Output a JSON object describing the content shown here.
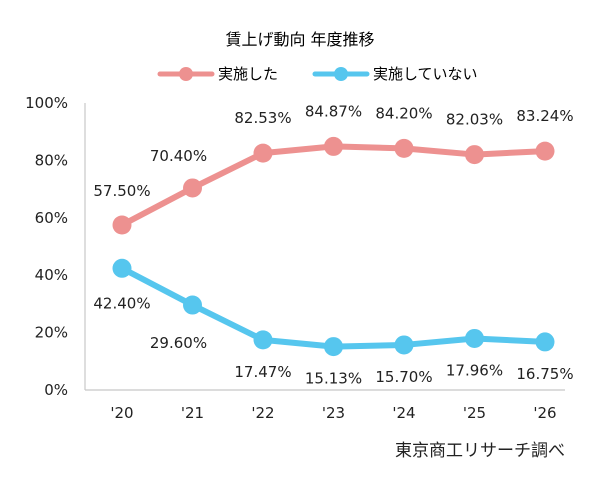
{
  "chart_data": {
    "type": "line",
    "title": "賃上げ動向  年度推移",
    "categories": [
      "'20",
      "'21",
      "'22",
      "'23",
      "'24",
      "'25",
      "'26"
    ],
    "series": [
      {
        "name": "実施した",
        "color": "#ed9190",
        "values": [
          57.5,
          70.4,
          82.53,
          84.87,
          84.2,
          82.03,
          83.24
        ],
        "labels": [
          "57.50%",
          "70.40%",
          "82.53%",
          "84.87%",
          "84.20%",
          "82.03%",
          "83.24%"
        ]
      },
      {
        "name": "実施していない",
        "color": "#56c6ee",
        "values": [
          42.4,
          29.6,
          17.47,
          15.13,
          15.7,
          17.96,
          16.75
        ],
        "labels": [
          "42.40%",
          "29.60%",
          "17.47%",
          "15.13%",
          "15.70%",
          "17.96%",
          "16.75%"
        ]
      }
    ],
    "ylim": [
      0,
      100
    ],
    "y_ticks": [
      "0%",
      "20%",
      "40%",
      "60%",
      "80%",
      "100%"
    ],
    "grid": false,
    "legend": "top",
    "source": "東京商工リサーチ調べ"
  }
}
